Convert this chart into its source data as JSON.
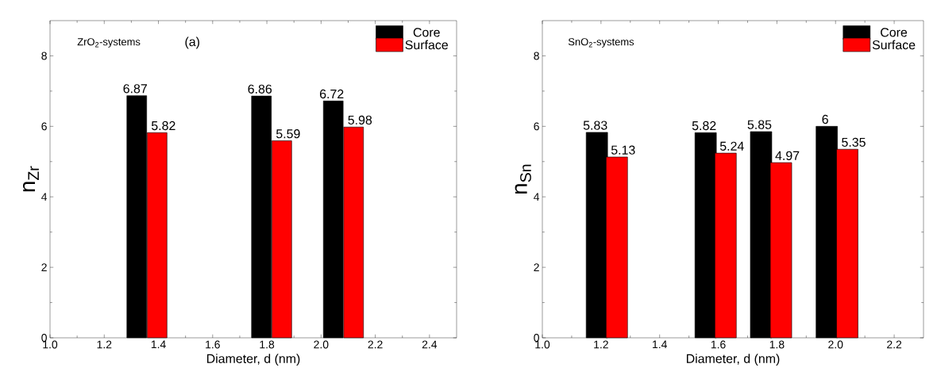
{
  "chart_data": [
    {
      "type": "bar",
      "xlabel": "Diameter, d (nm)",
      "ylabel": "n$_{Zr}$",
      "annotations": [
        "ZrO$_{2}$-systems",
        "(a)"
      ],
      "xlim": [
        1.0,
        2.5
      ],
      "ylim": [
        0,
        9
      ],
      "xticks": [
        {
          "value": 1.0,
          "label": "1.0"
        },
        {
          "value": 1.2,
          "label": "1.2"
        },
        {
          "value": 1.4,
          "label": "1.4"
        },
        {
          "value": 1.6,
          "label": "1.6"
        },
        {
          "value": 1.8,
          "label": "1.8"
        },
        {
          "value": 2.0,
          "label": "2.0"
        },
        {
          "value": 2.2,
          "label": "2.2"
        },
        {
          "value": 2.4,
          "label": "2.4"
        }
      ],
      "yticks": [
        0,
        2,
        4,
        6,
        8
      ],
      "legend": "top right",
      "data_labels": true,
      "series": [
        {
          "name": "Core",
          "color": "#000000",
          "x": [
            1.32,
            1.78,
            2.045
          ],
          "values": [
            6.87,
            6.86,
            6.72
          ]
        },
        {
          "name": "Surface",
          "color": "#ff0000",
          "x": [
            1.395,
            1.855,
            2.12
          ],
          "values": [
            5.82,
            5.59,
            5.98
          ]
        }
      ]
    },
    {
      "type": "bar",
      "xlabel": "Diameter, d (nm)",
      "ylabel": "n$_{Sn}$",
      "annotations": [
        "SnO$_{2}$-systems"
      ],
      "xlim": [
        1.0,
        2.3
      ],
      "ylim": [
        0,
        9
      ],
      "xticks": [
        {
          "value": 1.0,
          "label": "1.0"
        },
        {
          "value": 1.2,
          "label": "1.2"
        },
        {
          "value": 1.4,
          "label": "1.4"
        },
        {
          "value": 1.6,
          "label": "1.6"
        },
        {
          "value": 1.8,
          "label": "1.8"
        },
        {
          "value": 2.0,
          "label": "2.0"
        },
        {
          "value": 2.2,
          "label": "2.2"
        }
      ],
      "yticks": [
        0,
        2,
        4,
        6,
        8
      ],
      "legend": "top right",
      "data_labels": true,
      "series": [
        {
          "name": "Core",
          "color": "#000000",
          "x": [
            1.186,
            1.557,
            1.746,
            1.97
          ],
          "values": [
            5.83,
            5.82,
            5.85,
            6
          ]
        },
        {
          "name": "Surface",
          "color": "#ff0000",
          "x": [
            1.254,
            1.625,
            1.814,
            2.04
          ],
          "values": [
            5.13,
            5.24,
            4.97,
            5.35
          ]
        }
      ]
    }
  ]
}
